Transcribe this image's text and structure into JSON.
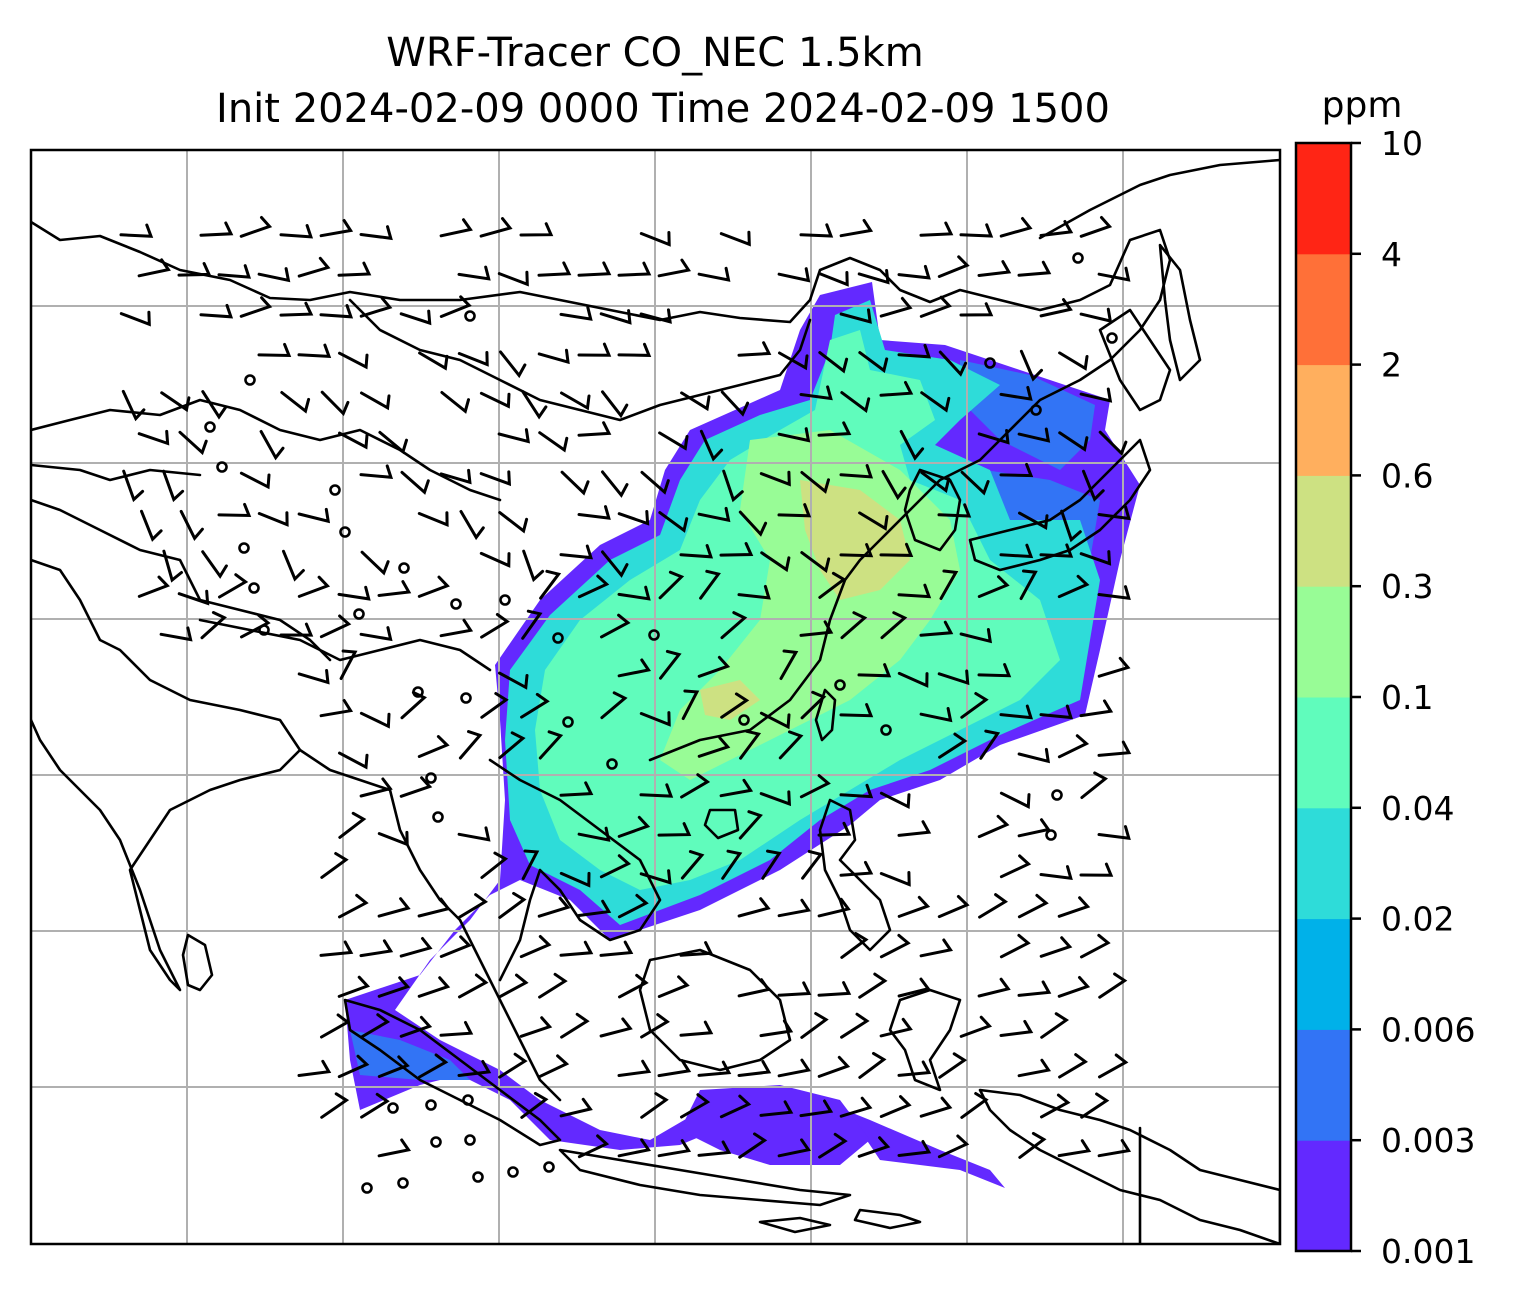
{
  "title": {
    "line1": "WRF-Tracer CO_NEC 1.5km",
    "line2": "Init 2024-02-09 0000 Time 2024-02-09 1500"
  },
  "colorbar": {
    "unit": "ppm",
    "ticks": [
      "0.001",
      "0.003",
      "0.006",
      "0.02",
      "0.04",
      "0.1",
      "0.3",
      "0.6",
      "2",
      "4",
      "10"
    ],
    "colors": [
      "#6329ff",
      "#3274f5",
      "#00b1e9",
      "#2edcd9",
      "#60fcbc",
      "#98fc96",
      "#cde182",
      "#ffaf5e",
      "#ff7038",
      "#ff2515"
    ]
  },
  "map": {
    "field": "CO_NEC",
    "units": "ppm",
    "gridlines": true
  }
}
